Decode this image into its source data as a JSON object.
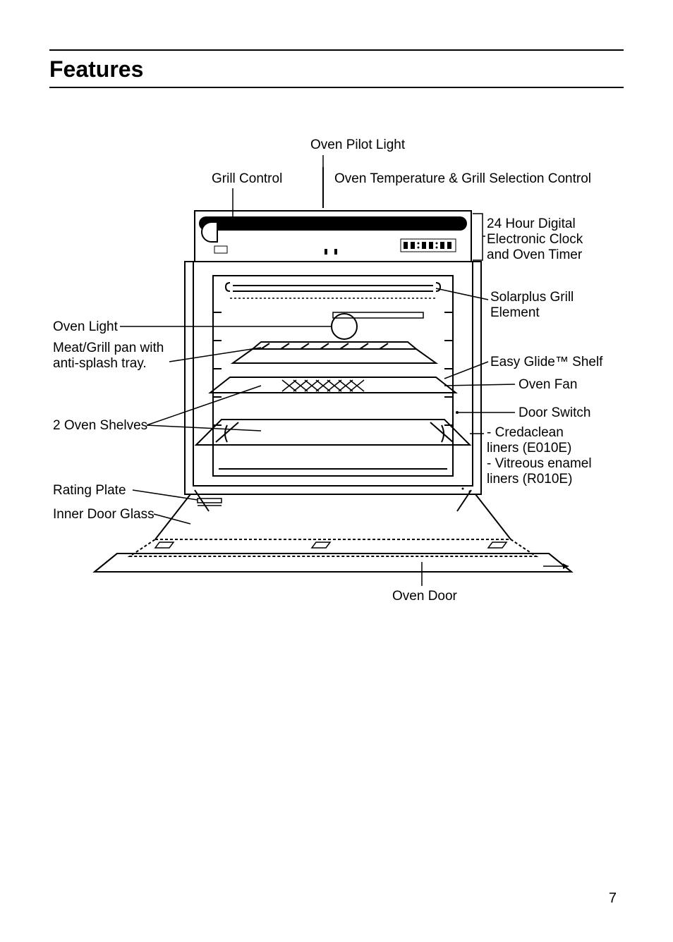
{
  "page": {
    "heading": "Features",
    "page_number": "7"
  },
  "labels": {
    "oven_pilot_light": "Oven Pilot Light",
    "grill_control": "Grill Control",
    "temp_grill_control": "Oven Temperature & Grill Selection Control",
    "digital_clock": "24 Hour Digital\nElectronic Clock\nand Oven Timer",
    "solarplus": "Solarplus Grill\nElement",
    "easy_glide": "Easy Glide™ Shelf",
    "oven_fan": "Oven Fan",
    "door_switch": "Door Switch",
    "liners": "- Credaclean\nliners (E010E)\n- Vitreous enamel\nliners (R010E)",
    "oven_light": "Oven Light",
    "meat_pan": "Meat/Grill pan with\nanti-splash tray.",
    "two_shelves": "2 Oven Shelves",
    "rating_plate": "Rating Plate",
    "inner_glass": "Inner Door Glass",
    "oven_door": "Oven Door"
  },
  "diagram": {
    "stroke": "#000000",
    "fill_black": "#000000",
    "fill_white": "#ffffff"
  }
}
